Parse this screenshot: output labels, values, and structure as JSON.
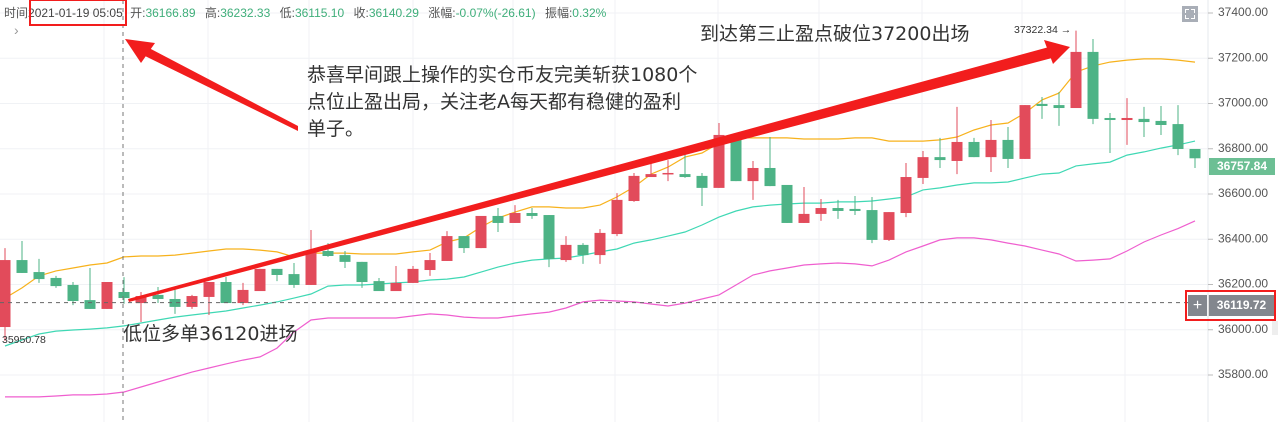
{
  "header": {
    "time_label": "时间",
    "time_value": "2021-01-19 05:05",
    "open_label": "开:",
    "open_value": "36166.89",
    "high_label": "高:",
    "high_value": "36232.33",
    "low_label": "低:",
    "low_value": "36115.10",
    "close_label": "收:",
    "close_value": "36140.29",
    "change_label": "涨幅:",
    "change_value": "-0.07%(-26.61)",
    "amplitude_label": "振幅:",
    "amplitude_value": "0.32%"
  },
  "icons": {
    "expand": "chevron-right-icon",
    "fullscreen": "fullscreen-icon",
    "add": "plus-icon"
  },
  "annotations": {
    "main_line1": "恭喜早间跟上操作的实仓币友完美斩获1080个",
    "main_line2": "点位止盈出局，关注老A每天都有稳健的盈利",
    "main_line3": "单子。",
    "exit_note": "到达第三止盈点破位37200出场",
    "entry_note": "低位多单36120进场",
    "high_marker": "37322.34 →",
    "low_marker": "35950.78"
  },
  "price_tags": {
    "last": "36757.84",
    "crosshair": "36119.72"
  },
  "colors": {
    "up": "#e24b5b",
    "down": "#4db386",
    "upper_band": "#f7b21c",
    "middle_band": "#3fd8b4",
    "lower_band": "#ef5fcf",
    "highlight": "#f21d1d"
  },
  "chart_data": {
    "type": "candlestick",
    "ylim": [
      35750,
      37450
    ],
    "grid": true,
    "y_ticks": [
      "37400.00",
      "37200.00",
      "37000.00",
      "36800.00",
      "36600.00",
      "36400.00",
      "36200.00",
      "36000.00",
      "35800.00"
    ],
    "crosshair": {
      "candle_index": 7,
      "price": 36119.72
    },
    "candles": [
      [
        36012,
        36361,
        35950.78,
        36308
      ],
      [
        36308,
        36392,
        36251,
        36251
      ],
      [
        36255,
        36313,
        36207,
        36224
      ],
      [
        36229,
        36238,
        36185,
        36193
      ],
      [
        36198,
        36211,
        36109,
        36127
      ],
      [
        36131,
        36273,
        36092,
        36092
      ],
      [
        36092,
        36211,
        36092,
        36211
      ],
      [
        36166.89,
        36232.33,
        36115.1,
        36140.29
      ],
      [
        36118,
        36167,
        36034,
        36149
      ],
      [
        36154,
        36189,
        36118,
        36136
      ],
      [
        36136,
        36180,
        36070,
        36101
      ],
      [
        36101,
        36154,
        36092,
        36149
      ],
      [
        36145,
        36211,
        36065,
        36211
      ],
      [
        36211,
        36233,
        36118,
        36118
      ],
      [
        36118,
        36207,
        36109,
        36176
      ],
      [
        36171,
        36269,
        36171,
        36269
      ],
      [
        36269,
        36269,
        36215,
        36242
      ],
      [
        36246,
        36295,
        36185,
        36198
      ],
      [
        36198,
        36441,
        36198,
        36344
      ],
      [
        36348,
        36383,
        36322,
        36326
      ],
      [
        36330,
        36348,
        36273,
        36300
      ],
      [
        36300,
        36300,
        36185,
        36211
      ],
      [
        36215,
        36229,
        36171,
        36171
      ],
      [
        36171,
        36282,
        36171,
        36207
      ],
      [
        36207,
        36282,
        36207,
        36269
      ],
      [
        36264,
        36339,
        36238,
        36308
      ],
      [
        36304,
        36436,
        36304,
        36414
      ],
      [
        36414,
        36414,
        36339,
        36361
      ],
      [
        36361,
        36503,
        36361,
        36503
      ],
      [
        36503,
        36538,
        36432,
        36472
      ],
      [
        36472,
        36551,
        36472,
        36516
      ],
      [
        36516,
        36538,
        36490,
        36503
      ],
      [
        36507,
        36507,
        36277,
        36313
      ],
      [
        36308,
        36414,
        36300,
        36375
      ],
      [
        36375,
        36383,
        36291,
        36330
      ],
      [
        36330,
        36445,
        36291,
        36428
      ],
      [
        36423,
        36604,
        36414,
        36574
      ],
      [
        36569,
        36693,
        36565,
        36680
      ],
      [
        36675,
        36737,
        36675,
        36688
      ],
      [
        36688,
        36750,
        36657,
        36693
      ],
      [
        36688,
        36781,
        36671,
        36675
      ],
      [
        36680,
        36693,
        36547,
        36627
      ],
      [
        36627,
        36914,
        36627,
        36861
      ],
      [
        36843,
        36843,
        36657,
        36657
      ],
      [
        36657,
        36746,
        36574,
        36715
      ],
      [
        36715,
        36852,
        36635,
        36635
      ],
      [
        36640,
        36640,
        36472,
        36472
      ],
      [
        36472,
        36631,
        36472,
        36512
      ],
      [
        36512,
        36578,
        36481,
        36538
      ],
      [
        36538,
        36574,
        36490,
        36525
      ],
      [
        36534,
        36591,
        36507,
        36525
      ],
      [
        36529,
        36587,
        36383,
        36397
      ],
      [
        36397,
        36520,
        36392,
        36520
      ],
      [
        36516,
        36737,
        36498,
        36675
      ],
      [
        36671,
        36790,
        36644,
        36763
      ],
      [
        36763,
        36848,
        36715,
        36750
      ],
      [
        36746,
        36985,
        36688,
        36830
      ],
      [
        36830,
        36848,
        36763,
        36763
      ],
      [
        36763,
        36927,
        36697,
        36839
      ],
      [
        36839,
        36896,
        36715,
        36755
      ],
      [
        36755,
        36993,
        36755,
        36993
      ],
      [
        36998,
        37029,
        36932,
        36989
      ],
      [
        36993,
        37051,
        36901,
        36980
      ],
      [
        36980,
        37322.34,
        36980,
        37228
      ],
      [
        37228,
        37285,
        36909,
        36932
      ],
      [
        36936,
        36958,
        36781,
        36927
      ],
      [
        36927,
        37024,
        36817,
        36936
      ],
      [
        36932,
        36985,
        36852,
        36918
      ],
      [
        36923,
        36989,
        36861,
        36905
      ],
      [
        36909,
        36993,
        36772,
        36799
      ],
      [
        36799,
        36799,
        36715,
        36757.84
      ]
    ],
    "bands": {
      "upper": [
        36140,
        36185,
        36238,
        36260,
        36273,
        36286,
        36295,
        36322,
        36326,
        36326,
        36330,
        36339,
        36348,
        36357,
        36357,
        36352,
        36344,
        36322,
        36339,
        36339,
        36339,
        36335,
        36335,
        36335,
        36344,
        36352,
        36388,
        36406,
        36454,
        36494,
        36520,
        36543,
        36543,
        36538,
        36538,
        36551,
        36587,
        36631,
        36688,
        36719,
        36763,
        36781,
        36825,
        36848,
        36848,
        36848,
        36848,
        36843,
        36843,
        36843,
        36848,
        36848,
        36834,
        36834,
        36834,
        36839,
        36852,
        36883,
        36905,
        36914,
        36958,
        37016,
        37046,
        37139,
        37166,
        37183,
        37192,
        37197,
        37197,
        37192,
        37183
      ],
      "middle": [
        35928,
        35955,
        35981,
        35994,
        35999,
        36003,
        36008,
        36017,
        36030,
        36043,
        36056,
        36065,
        36074,
        36083,
        36096,
        36109,
        36123,
        36140,
        36158,
        36193,
        36198,
        36198,
        36202,
        36207,
        36211,
        36220,
        36224,
        36233,
        36255,
        36277,
        36295,
        36308,
        36313,
        36317,
        36330,
        36344,
        36357,
        36383,
        36397,
        36414,
        36432,
        36463,
        36498,
        36525,
        36543,
        36551,
        36556,
        36560,
        36560,
        36565,
        36565,
        36569,
        36578,
        36587,
        36618,
        36627,
        36640,
        36649,
        36649,
        36653,
        36671,
        36688,
        36693,
        36724,
        36733,
        36741,
        36772,
        36786,
        36803,
        36817,
        36834
      ],
      "lower": [
        35703,
        35703,
        35703,
        35707,
        35712,
        35712,
        35716,
        35725,
        35747,
        35769,
        35791,
        35813,
        35831,
        35849,
        35866,
        35880,
        35919,
        35990,
        36043,
        36052,
        36052,
        36052,
        36052,
        36052,
        36061,
        36070,
        36065,
        36056,
        36052,
        36052,
        36061,
        36070,
        36078,
        36096,
        36123,
        36131,
        36127,
        36123,
        36114,
        36105,
        36118,
        36136,
        36154,
        36198,
        36242,
        36260,
        36273,
        36286,
        36291,
        36295,
        36291,
        36282,
        36308,
        36344,
        36370,
        36397,
        36406,
        36406,
        36397,
        36383,
        36370,
        36352,
        36335,
        36304,
        36308,
        36313,
        36348,
        36388,
        36419,
        36447,
        36481
      ]
    }
  }
}
